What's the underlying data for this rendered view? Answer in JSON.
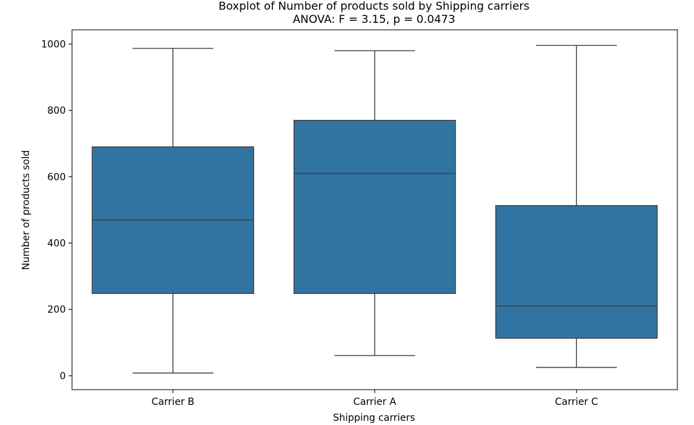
{
  "chart_data": {
    "type": "box",
    "title": "Boxplot of Number of products sold by Shipping carriers",
    "subtitle": "ANOVA: F = 3.15, p = 0.0473",
    "xlabel": "Shipping carriers",
    "ylabel": "Number of products sold",
    "ylim": [
      -42,
      1043
    ],
    "yticks": [
      0,
      200,
      400,
      600,
      800,
      1000
    ],
    "grid": false,
    "legend": "none",
    "box_color": "#3274a1",
    "line_color": "#3d3d3d",
    "categories": [
      "Carrier B",
      "Carrier A",
      "Carrier C"
    ],
    "boxes": [
      {
        "category": "Carrier B",
        "min": 8,
        "q1": 248,
        "median": 470,
        "q3": 690,
        "max": 987
      },
      {
        "category": "Carrier A",
        "min": 61,
        "q1": 248,
        "median": 610,
        "q3": 770,
        "max": 980
      },
      {
        "category": "Carrier C",
        "min": 25,
        "q1": 113,
        "median": 210,
        "q3": 513,
        "max": 996
      }
    ]
  }
}
